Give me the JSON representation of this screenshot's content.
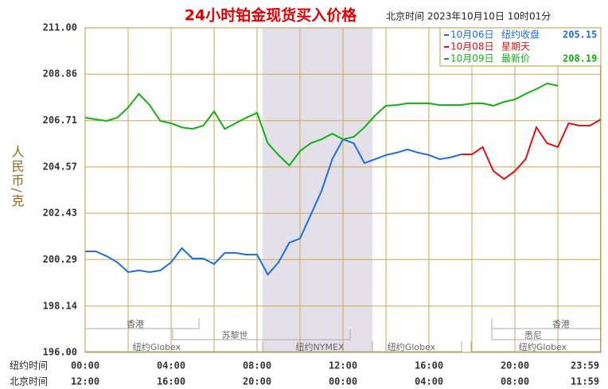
{
  "chart_data": {
    "type": "line",
    "title": "24小时铂金现货买入价格",
    "subtitle": "北京时间   2023年10月10日 10时01分",
    "y_label": "人民币/克",
    "x_label": "纽约时间",
    "x2_label": "北京时间",
    "x": [
      0,
      0.5,
      1,
      1.5,
      2,
      2.5,
      3,
      3.5,
      4,
      4.5,
      5,
      5.5,
      6,
      6.5,
      7,
      7.5,
      8,
      8.5,
      9,
      9.5,
      10,
      10.5,
      11,
      11.5,
      12,
      12.5,
      13,
      13.5,
      14,
      14.5,
      15,
      15.5,
      16,
      16.5,
      17,
      17.5,
      18,
      18.5,
      19,
      19.5,
      20,
      20.5,
      21,
      21.5,
      22,
      22.5,
      23,
      23.5,
      24
    ],
    "series": [
      {
        "name": "10月06日",
        "note": "纽约收盘",
        "note_value": 205.15,
        "color": "#1a6fe0",
        "values": [
          200.67,
          200.67,
          200.45,
          200.16,
          199.71,
          199.79,
          199.71,
          199.79,
          200.16,
          200.82,
          200.34,
          200.34,
          200.08,
          200.6,
          200.6,
          200.52,
          200.52,
          199.6,
          200.16,
          201.07,
          201.26,
          202.36,
          203.46,
          204.93,
          205.85,
          205.67,
          204.75,
          204.93,
          205.12,
          205.23,
          205.38,
          205.23,
          205.12,
          204.93,
          205.01,
          205.15,
          null,
          null,
          null,
          null,
          null,
          null,
          null,
          null,
          null,
          null,
          null,
          null,
          null
        ]
      },
      {
        "name": "10月08日",
        "note": "星期天",
        "color": "#e01010",
        "values": [
          null,
          null,
          null,
          null,
          null,
          null,
          null,
          null,
          null,
          null,
          null,
          null,
          null,
          null,
          null,
          null,
          null,
          null,
          null,
          null,
          null,
          null,
          null,
          null,
          null,
          null,
          null,
          null,
          null,
          null,
          null,
          null,
          null,
          null,
          null,
          205.15,
          205.15,
          205.49,
          204.38,
          204.01,
          204.38,
          204.93,
          206.4,
          205.67,
          205.49,
          206.59,
          206.48,
          206.48,
          206.77
        ]
      },
      {
        "name": "10月09日",
        "note": "最新价",
        "note_value": 208.19,
        "color": "#10b010",
        "values": [
          206.85,
          206.77,
          206.7,
          206.85,
          207.32,
          207.95,
          207.43,
          206.7,
          206.59,
          206.4,
          206.33,
          206.48,
          207.14,
          206.33,
          206.59,
          206.85,
          207.07,
          205.67,
          205.12,
          204.64,
          205.3,
          205.67,
          205.85,
          206.11,
          205.85,
          205.96,
          206.4,
          206.96,
          207.4,
          207.43,
          207.51,
          207.51,
          207.51,
          207.43,
          207.43,
          207.43,
          207.51,
          207.51,
          207.4,
          207.58,
          207.69,
          207.95,
          208.17,
          208.43,
          208.32,
          null,
          null,
          null,
          null
        ]
      }
    ],
    "xlim": [
      0,
      24
    ],
    "ylim": [
      196,
      211
    ],
    "yticks": [
      {
        "value": 211,
        "label": "211.00"
      },
      {
        "value": 208.86,
        "label": "208.86"
      },
      {
        "value": 206.71,
        "label": "206.71"
      },
      {
        "value": 204.57,
        "label": "204.57"
      },
      {
        "value": 202.43,
        "label": "202.43"
      },
      {
        "value": 200.29,
        "label": "200.29"
      },
      {
        "value": 198.14,
        "label": "198.14"
      },
      {
        "value": 196,
        "label": "196.00"
      }
    ],
    "xticks": [
      {
        "value": 0,
        "label": "00:00"
      },
      {
        "value": 4,
        "label": "04:00"
      },
      {
        "value": 8,
        "label": "08:00"
      },
      {
        "value": 12,
        "label": "12:00"
      },
      {
        "value": 16,
        "label": "16:00"
      },
      {
        "value": 20,
        "label": "20:00"
      },
      {
        "value": 23.98,
        "label": "23:59"
      }
    ],
    "x2ticks": [
      {
        "value": 0,
        "label": "12:00"
      },
      {
        "value": 4,
        "label": "16:00"
      },
      {
        "value": 8,
        "label": "20:00"
      },
      {
        "value": 12,
        "label": "00:00"
      },
      {
        "value": 16,
        "label": "04:00"
      },
      {
        "value": 20,
        "label": "08:00"
      },
      {
        "value": 23.98,
        "label": "11:59"
      }
    ],
    "xminor": [
      2,
      6,
      10,
      14,
      18,
      22
    ],
    "grid": true,
    "sessions": [
      "香港",
      "香港",
      "苏黎世",
      "悉尼",
      "纽约Globex",
      "纽约NYMEX",
      "纽约Globex",
      "纽约Globex"
    ]
  }
}
